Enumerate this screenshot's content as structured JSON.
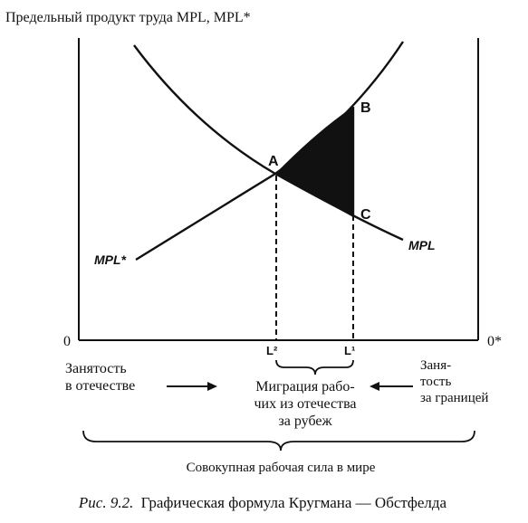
{
  "figure": {
    "y_axis_title": "Предельный продукт труда MPL, MPL*",
    "origin_home": "0",
    "origin_foreign": "0*",
    "curve_mpl_label": "MPL",
    "curve_mpl_star_label": "MPL*",
    "point_a": "A",
    "point_b": "B",
    "point_c": "C",
    "tick_l2": "L²",
    "tick_l1": "L¹",
    "employment_home": [
      "Занятость",
      "в отечестве"
    ],
    "employment_abroad": [
      "Заня-",
      "тость",
      "за границей"
    ],
    "migration": [
      "Миграция рабо-",
      "чих из отечества",
      "за рубеж"
    ],
    "world_labor": "Совокупная рабочая сила в мире",
    "caption_prefix": "Рис. 9.2.",
    "caption_text": "Графическая формула Кругмана — Обстфелда",
    "colors": {
      "ink": "#111111",
      "background": "#ffffff"
    }
  }
}
